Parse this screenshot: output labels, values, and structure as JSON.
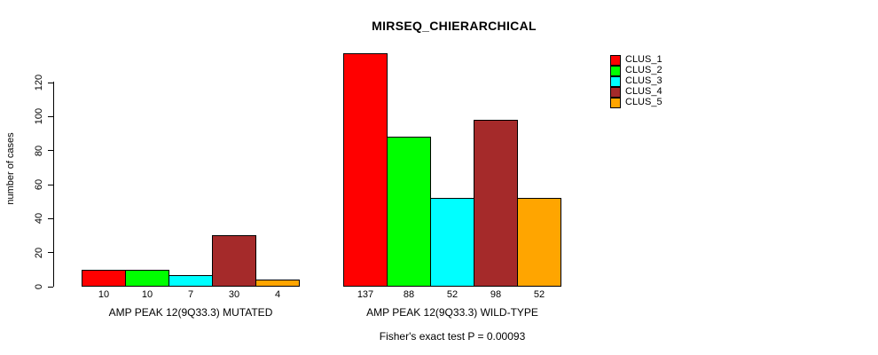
{
  "chart_data": {
    "type": "bar",
    "title": "MIRSEQ_CHIERARCHICAL",
    "xlabel": "",
    "ylabel": "number of cases",
    "yticks": [
      0,
      20,
      40,
      60,
      80,
      100,
      120
    ],
    "ylim": [
      0,
      137
    ],
    "grid": false,
    "legend_position": "right",
    "categories": [
      "AMP PEAK 12(9Q33.3) MUTATED",
      "AMP PEAK 12(9Q33.3) WILD-TYPE"
    ],
    "groups": [
      {
        "label": "AMP PEAK 12(9Q33.3) MUTATED",
        "values": [
          10,
          10,
          7,
          30,
          4
        ]
      },
      {
        "label": "AMP PEAK 12(9Q33.3) WILD-TYPE",
        "values": [
          137,
          88,
          52,
          98,
          52
        ]
      }
    ],
    "series": [
      {
        "name": "CLUS_1",
        "color": "#FF0000",
        "values": [
          10,
          137
        ]
      },
      {
        "name": "CLUS_2",
        "color": "#00FF00",
        "values": [
          10,
          88
        ]
      },
      {
        "name": "CLUS_3",
        "color": "#00FFFF",
        "values": [
          7,
          52
        ]
      },
      {
        "name": "CLUS_4",
        "color": "#A52A2A",
        "values": [
          30,
          98
        ]
      },
      {
        "name": "CLUS_5",
        "color": "#FFA500",
        "values": [
          4,
          52
        ]
      }
    ],
    "legend": [
      {
        "label": "CLUS_1",
        "color": "#FF0000"
      },
      {
        "label": "CLUS_2",
        "color": "#00FF00"
      },
      {
        "label": "CLUS_3",
        "color": "#00FFFF"
      },
      {
        "label": "CLUS_4",
        "color": "#A52A2A"
      },
      {
        "label": "CLUS_5",
        "color": "#FFA500"
      }
    ],
    "footnote": "Fisher's exact test P = 0.00093",
    "axis_color": "#000000",
    "bar_border_color": "#000000"
  }
}
